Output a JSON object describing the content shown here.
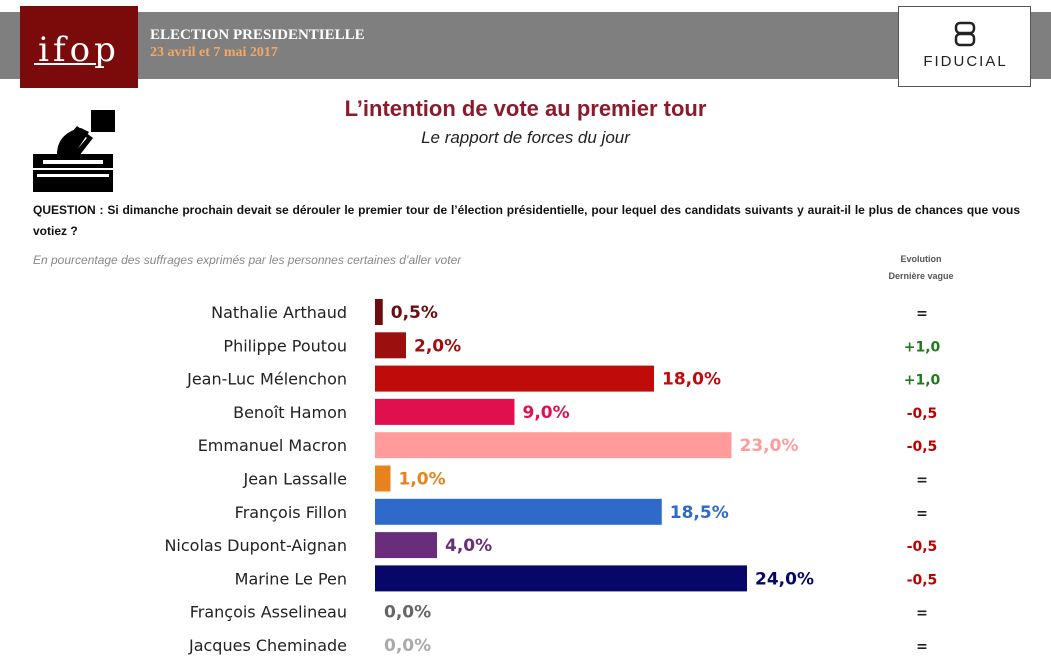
{
  "header": {
    "logo_text": "ifop",
    "title": "ELECTION PRESIDENTIELLE",
    "dates": "23 avril et 7 mai 2017",
    "partner": "FIDUCIAL"
  },
  "main_title": "L’intention de vote au premier tour",
  "main_subtitle": "Le rapport de forces du jour",
  "question": "QUESTION : Si dimanche prochain devait se dérouler le premier tour de l’élection présidentielle, pour lequel des candidats suivants y aurait-il le plus de chances que vous votiez ?",
  "note": "En pourcentage des suffrages exprimés par les personnes certaines d’aller voter",
  "evolution_header": [
    "Evolution",
    "Dernière vague"
  ],
  "icons": {
    "ballot_box": "ballot-box-icon",
    "partner_logo": "fiducial-logo-icon"
  },
  "chart_data": {
    "type": "bar",
    "orientation": "horizontal",
    "categories": [
      "Nathalie Arthaud",
      "Philippe Poutou",
      "Jean-Luc Mélenchon",
      "Benoît Hamon",
      "Emmanuel Macron",
      "Jean Lassalle",
      "François Fillon",
      "Nicolas Dupont-Aignan",
      "Marine Le Pen",
      "François Asselineau",
      "Jacques Cheminade"
    ],
    "values": [
      0.5,
      2.0,
      18.0,
      9.0,
      23.0,
      1.0,
      18.5,
      4.0,
      24.0,
      0.0,
      0.0
    ],
    "value_labels": [
      "0,5%",
      "2,0%",
      "18,0%",
      "9,0%",
      "23,0%",
      "1,0%",
      "18,5%",
      "4,0%",
      "24,0%",
      "0,0%",
      "0,0%"
    ],
    "colors": [
      "#6d0c0c",
      "#9c0f0f",
      "#c00b0b",
      "#e0104f",
      "#ff9b9b",
      "#e8821e",
      "#2f69c9",
      "#6a2d7b",
      "#07076a",
      "#666666",
      "#aaaaaa"
    ],
    "evolution": [
      "=",
      "+1,0",
      "+1,0",
      "-0,5",
      "-0,5",
      "=",
      "=",
      "-0,5",
      "-0,5",
      "=",
      "="
    ],
    "evolution_colors": {
      "positive": "#1f7a1f",
      "negative": "#c00000",
      "neutral": "#222222"
    },
    "xlim": [
      0,
      24
    ]
  }
}
